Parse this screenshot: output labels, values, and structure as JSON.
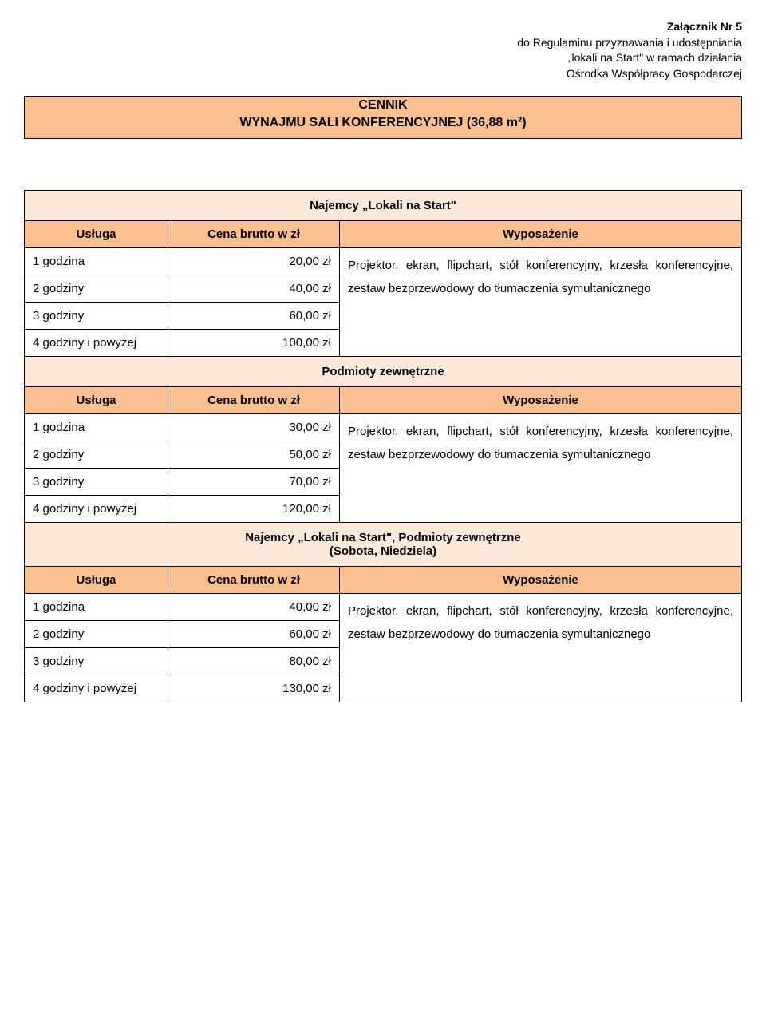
{
  "annex": {
    "title": "Załącznik Nr 5",
    "lines": [
      "do Regulaminu przyznawania i udostępniania",
      "„lokali na Start\" w ramach działania",
      "Ośrodka Współpracy Gospodarczej"
    ]
  },
  "titleBar": {
    "line1": "CENNIK",
    "line2": "WYNAJMU SALI KONFERENCYJNEJ (36,88 m²)"
  },
  "colHeaders": {
    "usluga": "Usługa",
    "cena": "Cena brutto w zł",
    "wyposazenie": "Wyposażenie"
  },
  "sections": [
    {
      "header": "Najemcy „Lokali na Start\"",
      "rows": [
        {
          "usluga": "1 godzina",
          "cena": "20,00 zł"
        },
        {
          "usluga": "2 godziny",
          "cena": "40,00 zł"
        },
        {
          "usluga": "3 godziny",
          "cena": "60,00 zł"
        },
        {
          "usluga": "4 godziny i powyżej",
          "cena": "100,00 zł"
        }
      ],
      "equipment": "Projektor, ekran, flipchart, stół konferencyjny, krzesła konferencyjne, zestaw bezprzewodowy do tłumaczenia symultanicznego"
    },
    {
      "header": "Podmioty zewnętrzne",
      "rows": [
        {
          "usluga": "1 godzina",
          "cena": "30,00 zł"
        },
        {
          "usluga": "2 godziny",
          "cena": "50,00 zł"
        },
        {
          "usluga": "3 godziny",
          "cena": "70,00 zł"
        },
        {
          "usluga": "4 godziny i powyżej",
          "cena": "120,00 zł"
        }
      ],
      "equipment": "Projektor, ekran, flipchart, stół konferencyjny, krzesła konferencyjne, zestaw bezprzewodowy do tłumaczenia symultanicznego"
    },
    {
      "header": "Najemcy „Lokali na Start\", Podmioty zewnętrzne",
      "subheader": "(Sobota, Niedziela)",
      "rows": [
        {
          "usluga": "1 godzina",
          "cena": "40,00 zł"
        },
        {
          "usluga": "2 godziny",
          "cena": "60,00 zł"
        },
        {
          "usluga": "3 godziny",
          "cena": "80,00 zł"
        },
        {
          "usluga": "4 godziny i powyżej",
          "cena": "130,00 zł"
        }
      ],
      "equipment": "Projektor, ekran, flipchart, stół konferencyjny, krzesła konferencyjne, zestaw bezprzewodowy do tłumaczenia symultanicznego"
    }
  ],
  "colors": {
    "header_bg": "#fac090",
    "section_bg": "#fde9d9",
    "border": "#000000",
    "page_bg": "#ffffff"
  }
}
